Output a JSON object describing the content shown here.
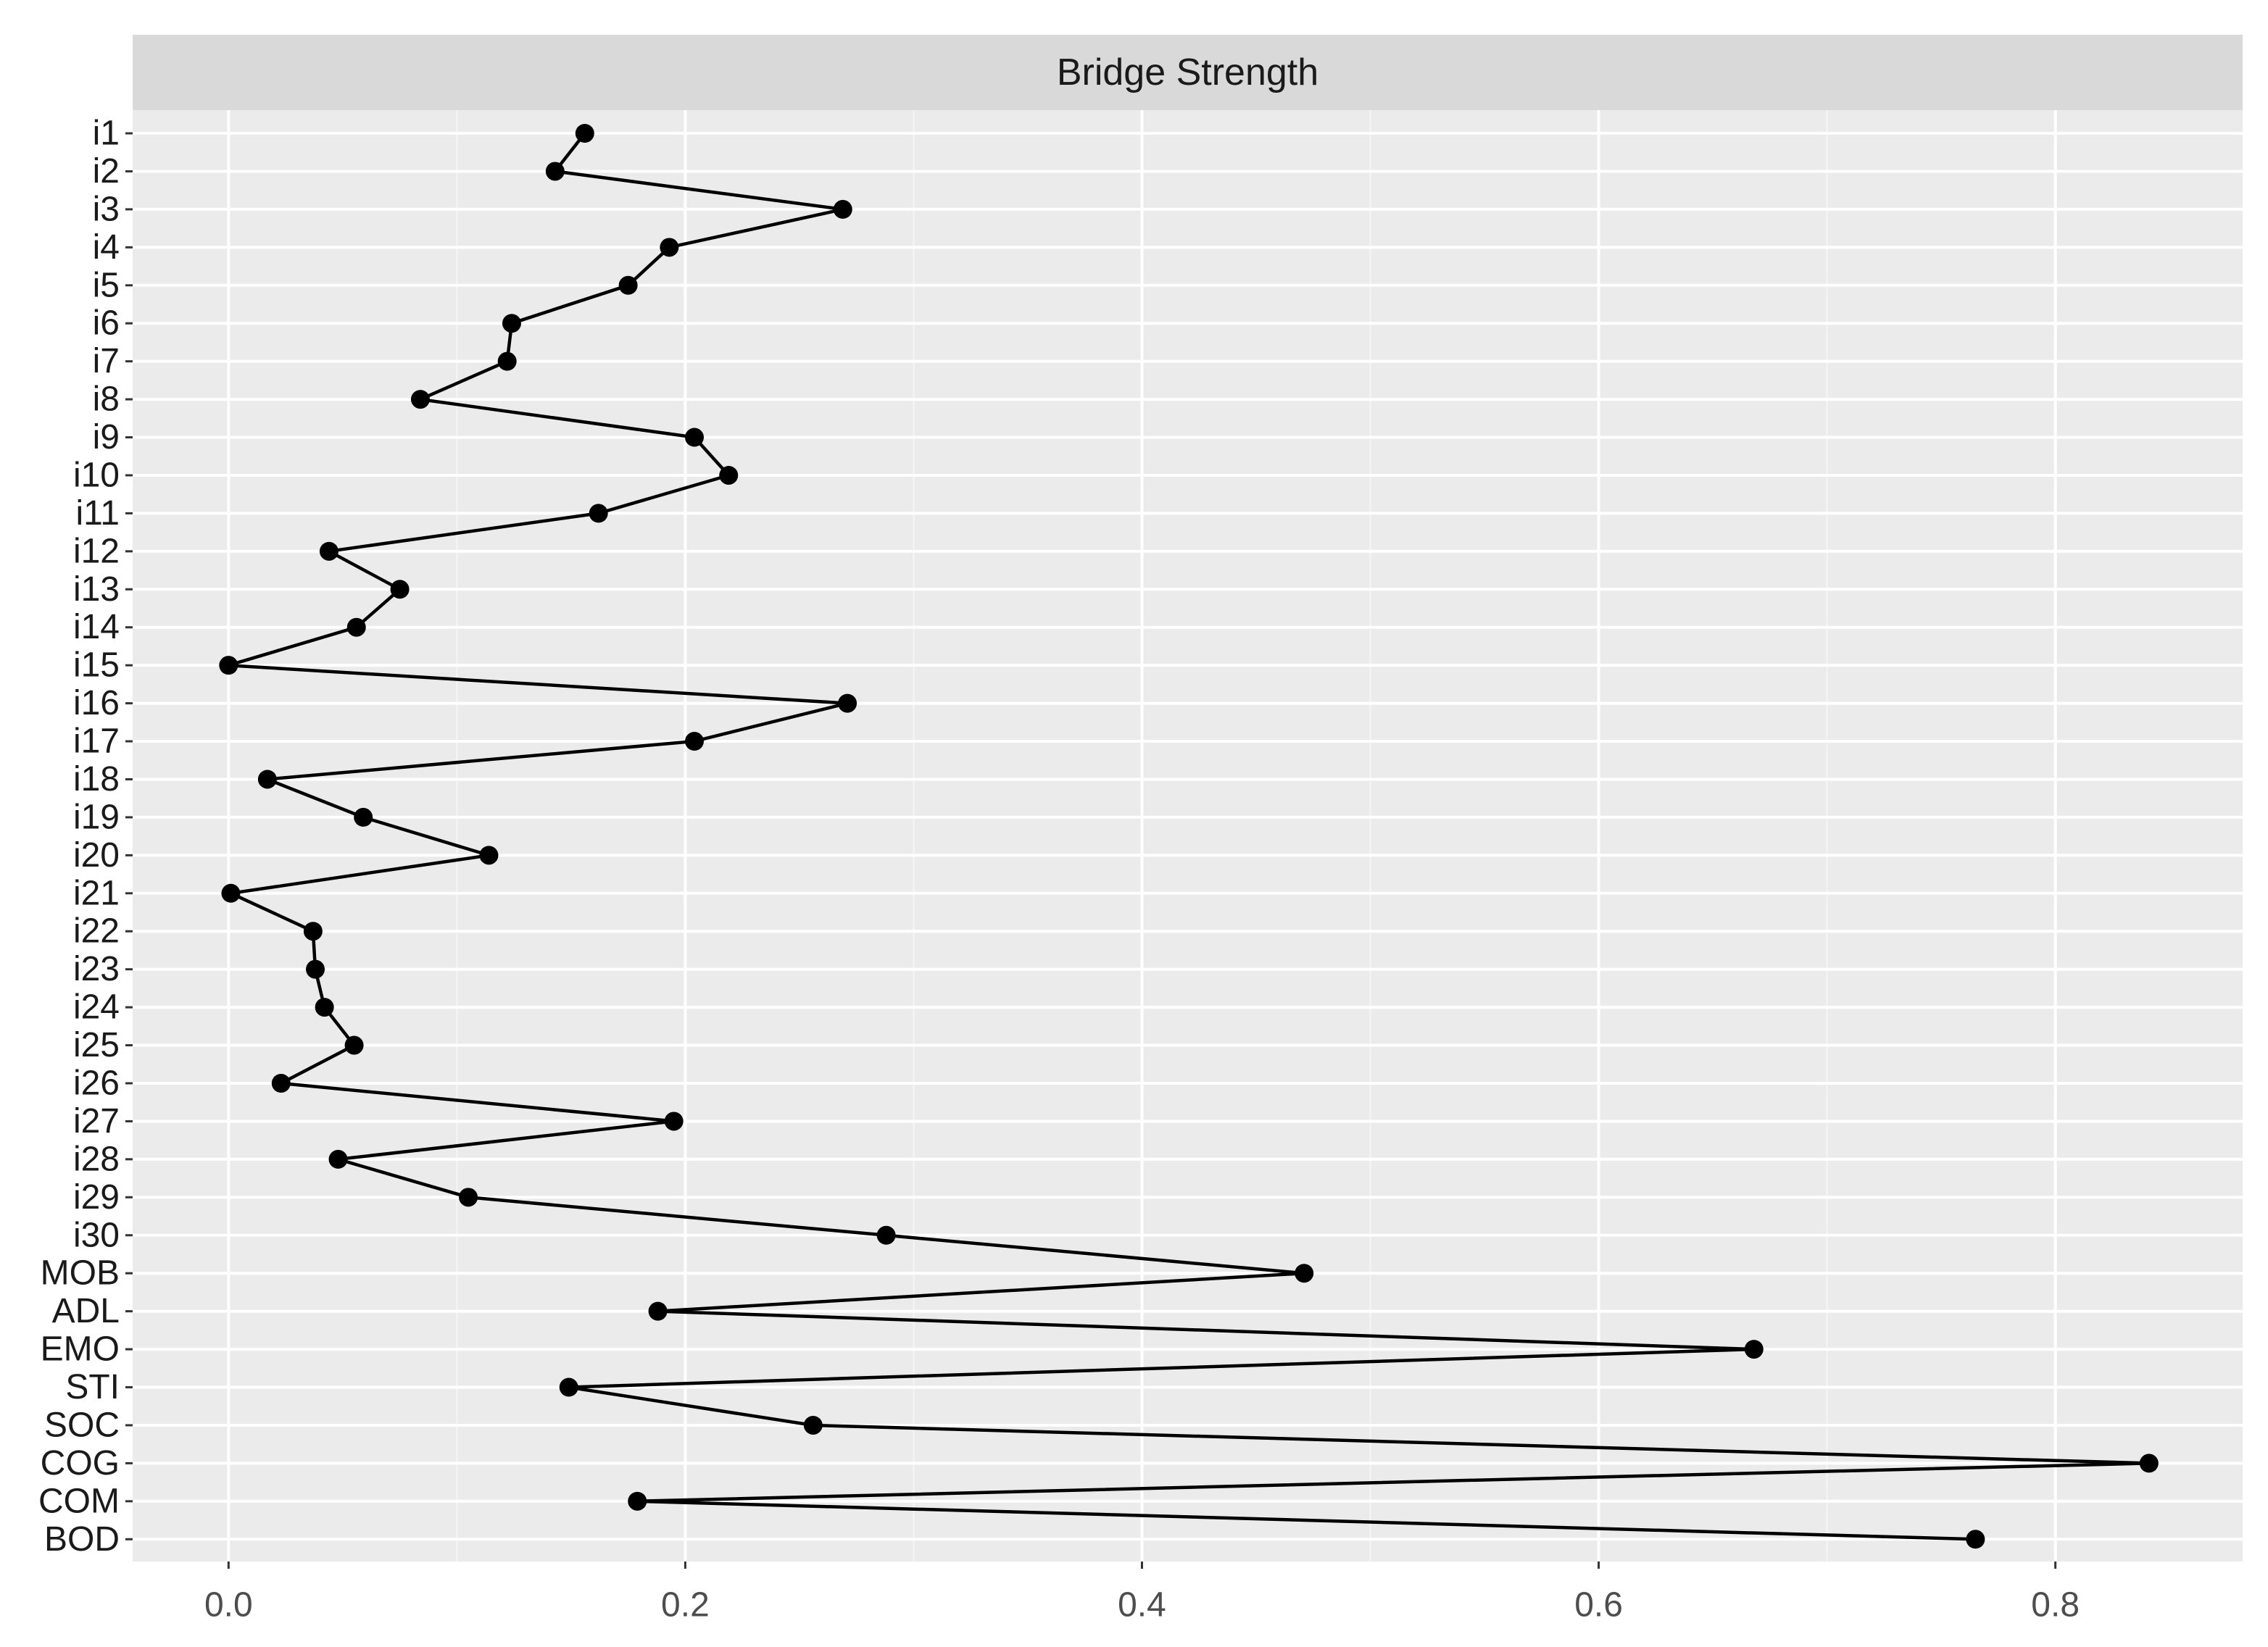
{
  "chart_data": {
    "type": "line",
    "title": "",
    "facet_label": "Bridge Strength",
    "xlabel": "",
    "ylabel": "",
    "xlim": [
      -0.042,
      0.882
    ],
    "x_ticks": [
      0.0,
      0.2,
      0.4,
      0.6,
      0.8
    ],
    "x_tick_labels": [
      "0.0",
      "0.2",
      "0.4",
      "0.6",
      "0.8"
    ],
    "grid": true,
    "legend": "none",
    "colors": {
      "panel_bg": "#ebebeb",
      "strip_bg": "#d9d9d9",
      "grid_major": "#ffffff",
      "grid_minor": "#f5f5f5",
      "line": "#000000",
      "point": "#000000"
    },
    "categories": [
      "i1",
      "i2",
      "i3",
      "i4",
      "i5",
      "i6",
      "i7",
      "i8",
      "i9",
      "i10",
      "i11",
      "i12",
      "i13",
      "i14",
      "i15",
      "i16",
      "i17",
      "i18",
      "i19",
      "i20",
      "i21",
      "i22",
      "i23",
      "i24",
      "i25",
      "i26",
      "i27",
      "i28",
      "i29",
      "i30",
      "MOB",
      "ADL",
      "EMO",
      "STI",
      "SOC",
      "COG",
      "COM",
      "BOD"
    ],
    "values": [
      0.156,
      0.143,
      0.269,
      0.193,
      0.175,
      0.124,
      0.122,
      0.084,
      0.204,
      0.219,
      0.162,
      0.044,
      0.075,
      0.056,
      0.0,
      0.271,
      0.204,
      0.017,
      0.059,
      0.114,
      0.001,
      0.037,
      0.038,
      0.042,
      0.055,
      0.023,
      0.195,
      0.048,
      0.105,
      0.288,
      0.471,
      0.188,
      0.668,
      0.149,
      0.256,
      0.841,
      0.179,
      0.765
    ]
  }
}
